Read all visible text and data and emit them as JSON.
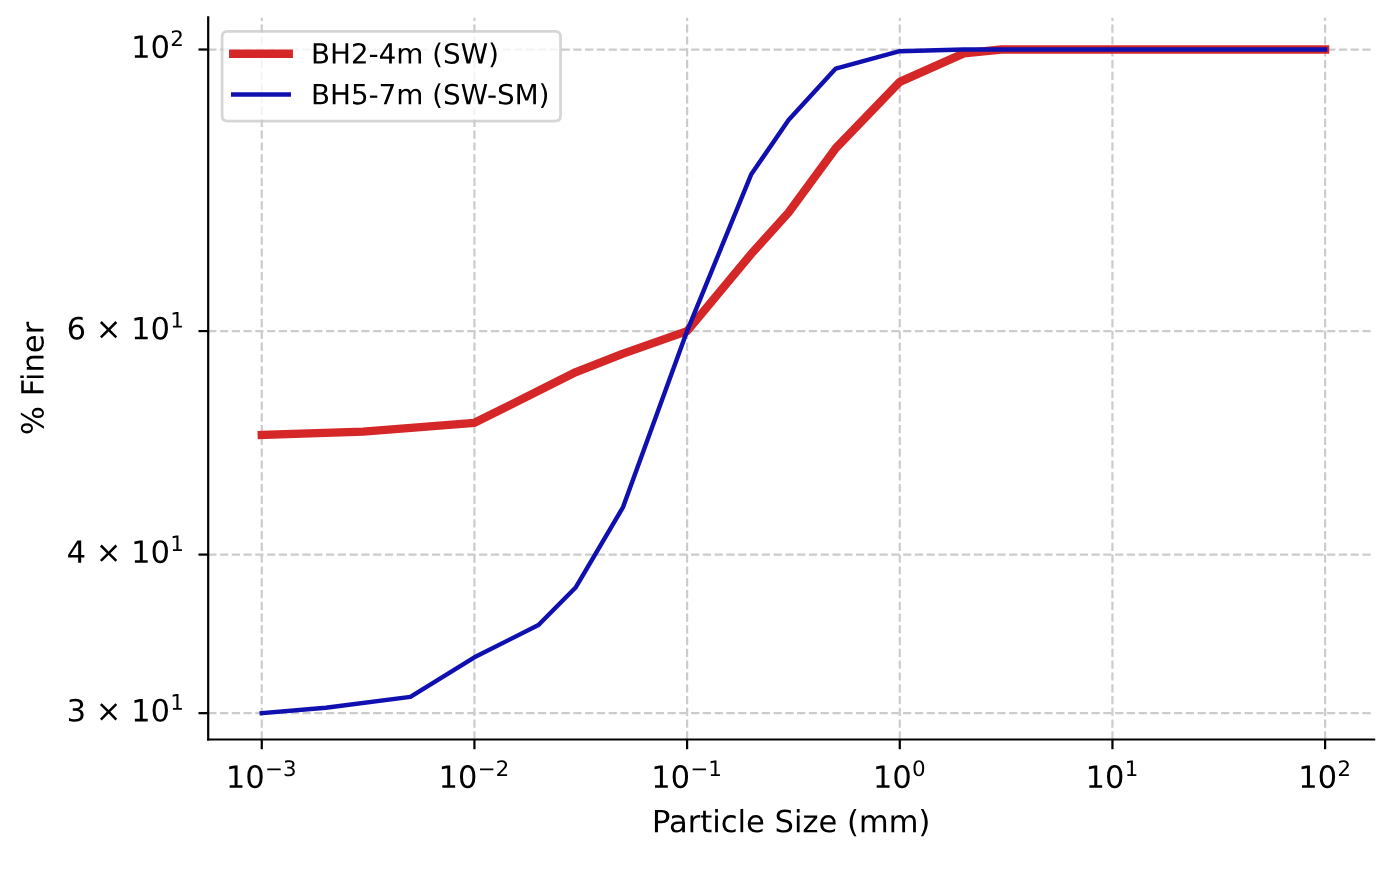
{
  "chart_data": {
    "type": "line",
    "xlabel": "Particle Size (mm)",
    "ylabel": "% Finer",
    "log": "xy",
    "grid": true,
    "legend": "top left",
    "line_style": "solid",
    "marker": "none",
    "xlim": [
      0.00056,
      170
    ],
    "ylim": [
      28.6,
      106
    ],
    "xticks": [
      {
        "value": 0.001,
        "label": "10$^{−3}$"
      },
      {
        "value": 0.01,
        "label": "10$^{−2}$"
      },
      {
        "value": 0.1,
        "label": "10$^{−1}$"
      },
      {
        "value": 1,
        "label": "10$^{0}$"
      },
      {
        "value": 10,
        "label": "10$^{1}$"
      },
      {
        "value": 100,
        "label": "10$^{2}$"
      }
    ],
    "yticks": [
      {
        "value": 30,
        "label": "3 × 10$^{1}$"
      },
      {
        "value": 40,
        "label": "4 × 10$^{1}$"
      },
      {
        "value": 60,
        "label": "6 × 10$^{1}$"
      },
      {
        "value": 100,
        "label": "10$^{2}$"
      }
    ],
    "series": [
      {
        "name": "BH2-4m (SW)",
        "color": "#d62728",
        "x": [
          0.001,
          0.003,
          0.01,
          0.03,
          0.05,
          0.1,
          0.2,
          0.3,
          0.5,
          1,
          2,
          3,
          10,
          100
        ],
        "values": [
          49.7,
          50.0,
          50.8,
          55.7,
          57.6,
          60,
          69.0,
          74.4,
          83.6,
          94.3,
          99.3,
          100,
          100,
          100
        ]
      },
      {
        "name": "BH5-7m (SW-SM)",
        "color": "#1010b0",
        "x": [
          0.001,
          0.002,
          0.005,
          0.01,
          0.02,
          0.03,
          0.05,
          0.1,
          0.2,
          0.3,
          0.5,
          1,
          2,
          10,
          100
        ],
        "values": [
          30.0,
          30.3,
          30.9,
          33.2,
          35.2,
          37.7,
          43.6,
          60,
          79.7,
          88.0,
          96.6,
          99.7,
          100,
          100,
          100
        ]
      }
    ]
  }
}
